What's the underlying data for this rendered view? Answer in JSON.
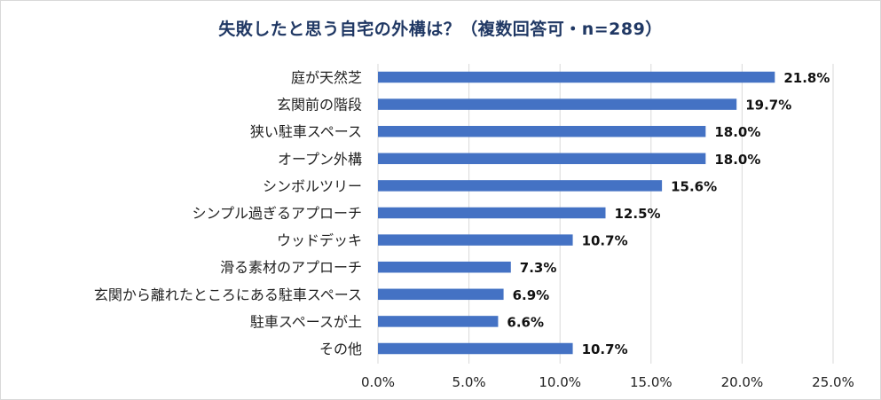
{
  "chart_data": {
    "type": "bar",
    "orientation": "horizontal",
    "title": "失敗したと思う自宅の外構は？（複数回答可・n=289）",
    "categories": [
      "庭が天然芝",
      "玄関前の階段",
      "狭い駐車スペース",
      "オープン外構",
      "シンボルツリー",
      "シンプル過ぎるアプローチ",
      "ウッドデッキ",
      "滑る素材のアプローチ",
      "玄関から離れたところにある駐車スペース",
      "駐車スペースが土",
      "その他"
    ],
    "values": [
      21.8,
      19.7,
      18.0,
      18.0,
      15.6,
      12.5,
      10.7,
      7.3,
      6.9,
      6.6,
      10.7
    ],
    "value_labels": [
      "21.8%",
      "19.7%",
      "18.0%",
      "18.0%",
      "15.6%",
      "12.5%",
      "10.7%",
      "7.3%",
      "6.9%",
      "6.6%",
      "10.7%"
    ],
    "xlim": [
      0,
      25
    ],
    "xticks": [
      0,
      5,
      10,
      15,
      20,
      25
    ],
    "xtick_labels": [
      "0.0%",
      "5.0%",
      "10.0%",
      "15.0%",
      "20.0%",
      "25.0%"
    ],
    "xlabel": "",
    "ylabel": "",
    "grid": "vertical",
    "legend": "none",
    "bar_color": "#4472c4",
    "grid_color": "#d9d9d9"
  }
}
